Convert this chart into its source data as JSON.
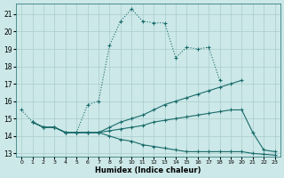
{
  "xlabel": "Humidex (Indice chaleur)",
  "background_color": "#cce8e8",
  "grid_color": "#aacccc",
  "line_color": "#1a6b6b",
  "xlim": [
    -0.5,
    23.5
  ],
  "ylim": [
    12.8,
    21.6
  ],
  "xticks": [
    0,
    1,
    2,
    3,
    4,
    5,
    6,
    7,
    8,
    9,
    10,
    11,
    12,
    13,
    14,
    15,
    16,
    17,
    18,
    19,
    20,
    21,
    22,
    23
  ],
  "yticks": [
    13,
    14,
    15,
    16,
    17,
    18,
    19,
    20,
    21
  ],
  "lines": [
    {
      "x": [
        0,
        1,
        2,
        3,
        4,
        5,
        6,
        7,
        8,
        9,
        10,
        11,
        12,
        13,
        14,
        15,
        16,
        17,
        18
      ],
      "y": [
        15.5,
        14.8,
        14.5,
        14.5,
        14.2,
        14.2,
        15.8,
        16.0,
        19.2,
        20.6,
        21.3,
        20.6,
        20.5,
        20.5,
        18.5,
        19.1,
        19.0,
        19.1,
        17.2
      ],
      "linestyle": ":"
    },
    {
      "x": [
        1,
        2,
        3,
        4,
        5,
        6,
        7,
        8,
        9,
        10,
        11,
        12,
        13,
        14,
        15,
        16,
        17,
        18,
        19,
        20
      ],
      "y": [
        14.8,
        14.5,
        14.5,
        14.2,
        14.2,
        14.2,
        14.2,
        14.5,
        14.8,
        15.0,
        15.2,
        15.5,
        15.8,
        16.0,
        16.2,
        16.4,
        16.6,
        16.8,
        17.0,
        17.2
      ],
      "linestyle": "-"
    },
    {
      "x": [
        1,
        2,
        3,
        4,
        5,
        6,
        7,
        8,
        9,
        10,
        11,
        12,
        13,
        14,
        15,
        16,
        17,
        18,
        19,
        20,
        21,
        22,
        23
      ],
      "y": [
        14.8,
        14.5,
        14.5,
        14.2,
        14.2,
        14.2,
        14.2,
        14.3,
        14.4,
        14.5,
        14.6,
        14.8,
        14.9,
        15.0,
        15.1,
        15.2,
        15.3,
        15.4,
        15.5,
        15.5,
        14.2,
        13.2,
        13.1
      ],
      "linestyle": "-"
    },
    {
      "x": [
        1,
        2,
        3,
        4,
        5,
        6,
        7,
        8,
        9,
        10,
        11,
        12,
        13,
        14,
        15,
        16,
        17,
        18,
        19,
        20,
        21,
        22,
        23
      ],
      "y": [
        14.8,
        14.5,
        14.5,
        14.2,
        14.2,
        14.2,
        14.2,
        14.0,
        13.8,
        13.7,
        13.5,
        13.4,
        13.3,
        13.2,
        13.1,
        13.1,
        13.1,
        13.1,
        13.1,
        13.1,
        13.0,
        12.95,
        12.9
      ],
      "linestyle": "-"
    }
  ]
}
